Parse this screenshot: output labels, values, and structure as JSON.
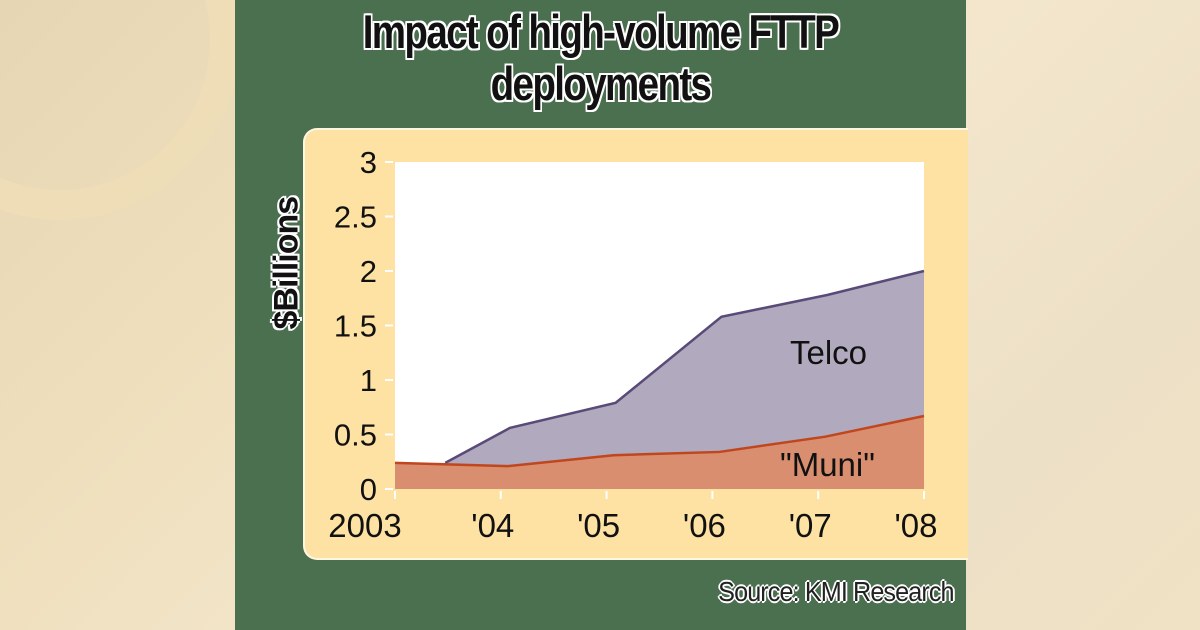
{
  "title_line1": "Impact of high-volume FTTP",
  "title_line2": "deployments",
  "ylabel": "$Billions",
  "source": "Source: KMI Research",
  "colors": {
    "panel": "#4a7050",
    "chart_bg": "#fde2a4",
    "telco_fill": "#b1a9bd",
    "telco_line": "#5a4a78",
    "muni_fill": "#d98e70",
    "muni_line": "#c0461e"
  },
  "chart_data": {
    "type": "area",
    "title": "Impact of high-volume FTTP deployments",
    "xlabel": "",
    "ylabel": "$Billions",
    "categories": [
      "2003",
      "'04",
      "'05",
      "'06",
      "'07",
      "'08"
    ],
    "x": [
      2003,
      2004,
      2005,
      2006,
      2007,
      2008
    ],
    "ylim": [
      0,
      3
    ],
    "yticks": [
      "0",
      "0.5",
      "1",
      "1.5",
      "2",
      "2.5",
      "3"
    ],
    "stacked": true,
    "series": [
      {
        "name": "\"Muni\"",
        "values": [
          0.24,
          0.21,
          0.31,
          0.34,
          0.48,
          0.67
        ]
      },
      {
        "name": "Telco",
        "values_total": [
          0.24,
          0.56,
          0.79,
          1.58,
          1.78,
          2.0
        ],
        "values": [
          0.0,
          0.35,
          0.48,
          1.24,
          1.3,
          1.33
        ]
      }
    ],
    "annotations": [
      "Telco",
      "\"Muni\""
    ],
    "grid": false,
    "legend": "inline labels"
  }
}
